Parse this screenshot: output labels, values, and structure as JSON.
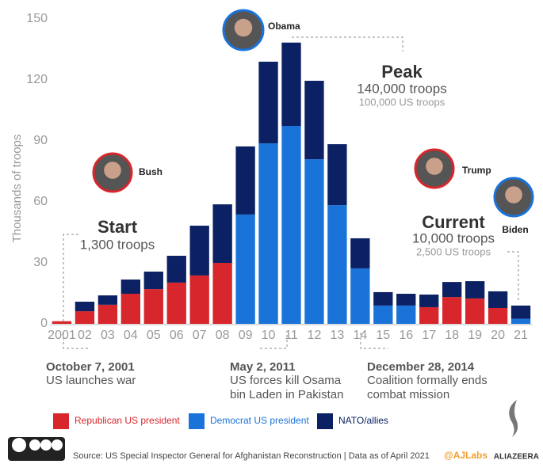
{
  "chart_data": {
    "type": "stacked-bar",
    "y_label": "Thousands of troops",
    "categories": [
      "2001",
      "02",
      "03",
      "04",
      "05",
      "06",
      "07",
      "08",
      "09",
      "10",
      "11",
      "12",
      "13",
      "14",
      "15",
      "16",
      "17",
      "18",
      "19",
      "20",
      "21"
    ],
    "series": [
      {
        "name": "Republican US president",
        "color": "#d7262c",
        "values": [
          1.3,
          6.2,
          9.4,
          14.8,
          17.1,
          20.3,
          23.8,
          30,
          null,
          null,
          null,
          null,
          null,
          null,
          null,
          null,
          8.2,
          13.2,
          12.5,
          7.8,
          null
        ]
      },
      {
        "name": "Democrat US president",
        "color": "#1a73d9",
        "values": [
          null,
          null,
          null,
          null,
          null,
          null,
          null,
          null,
          53.8,
          88.8,
          97.4,
          81,
          58.4,
          27.3,
          9,
          9,
          null,
          null,
          null,
          null,
          2.5
        ]
      },
      {
        "name": "NATO/allies",
        "color": "#0b2163",
        "values": [
          0,
          4.7,
          4.6,
          7,
          8.6,
          13.2,
          24.5,
          28.8,
          33.5,
          40.2,
          41,
          38.6,
          30,
          14.8,
          6.6,
          5.8,
          6.2,
          7.4,
          8.5,
          8.2,
          6.5
        ]
      }
    ],
    "ylim": [
      0,
      150
    ],
    "yticks": [
      0,
      30,
      60,
      90,
      120,
      150
    ],
    "annotations": [
      {
        "title": "Start",
        "lines": [
          "1,300 troops"
        ]
      },
      {
        "title": "Peak",
        "lines": [
          "140,000 troops",
          "100,000 US troops"
        ]
      },
      {
        "title": "Current",
        "lines": [
          "10,000 troops",
          "2,500 US troops"
        ]
      }
    ],
    "events": [
      {
        "date": "October 7, 2001",
        "lines": [
          "US launches war"
        ]
      },
      {
        "date": "May 2, 2011",
        "lines": [
          "US forces kill Osama",
          "bin Laden in Pakistan"
        ]
      },
      {
        "date": "December 28, 2014",
        "lines": [
          "Coalition formally ends",
          "combat mission"
        ]
      }
    ],
    "presidents": [
      "Bush",
      "Obama",
      "Trump",
      "Biden"
    ],
    "source": "Source: US Special Inspector General for Afghanistan Reconstruction | Data as of April 2021",
    "handle": "@AJLabs",
    "brand": "ALIAZEERA"
  }
}
